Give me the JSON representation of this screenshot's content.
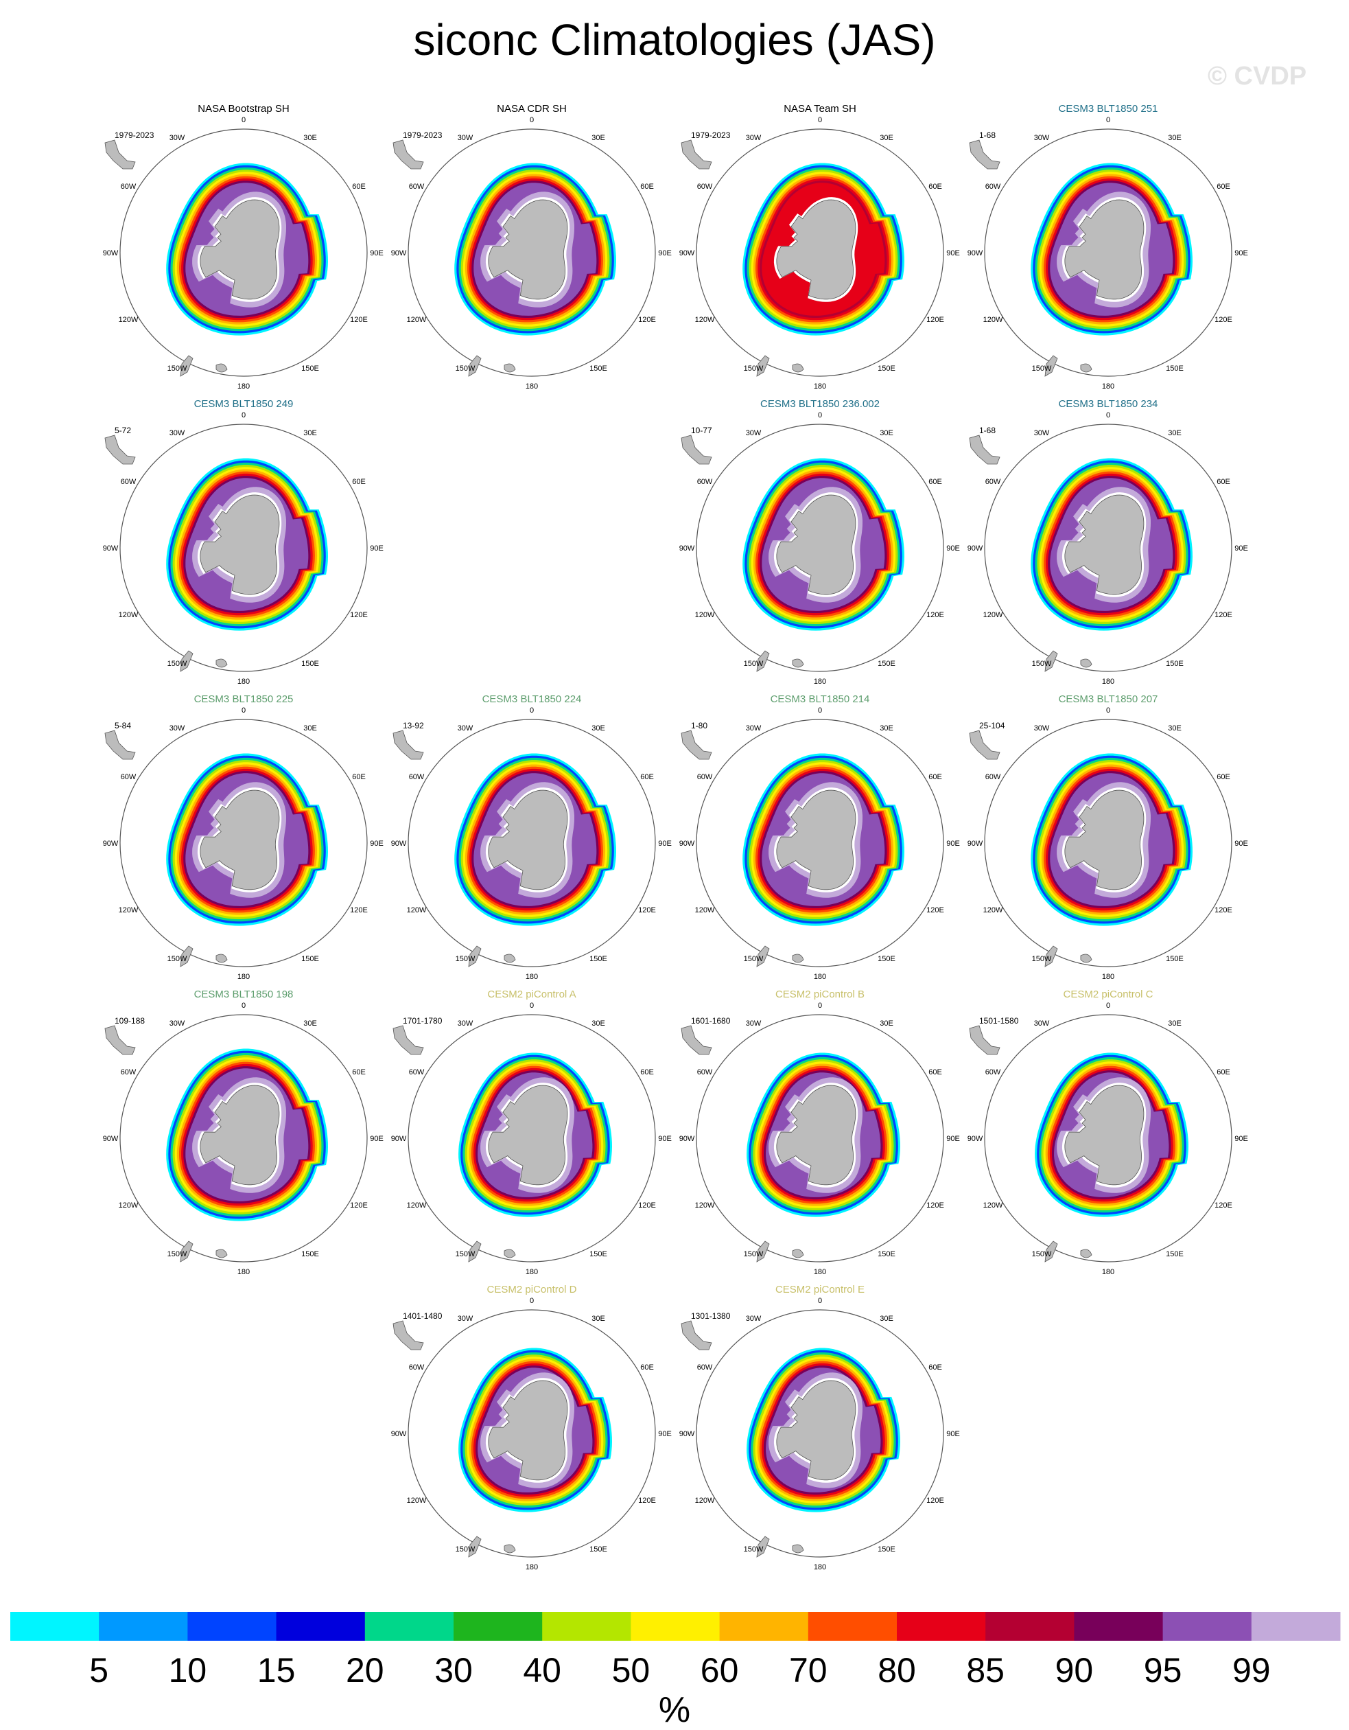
{
  "title": "siconc Climatologies (JAS)",
  "watermark": "© CVDP",
  "lon_labels": [
    "0",
    "30E",
    "60E",
    "90E",
    "120E",
    "150E",
    "180",
    "150W",
    "120W",
    "90W",
    "60W",
    "30W"
  ],
  "colors": {
    "title_obs": "#000000",
    "title_cesm3_teal": "#1f6f88",
    "title_cesm3_green": "#5e9e6e",
    "title_cesm2": "#c8c06a",
    "land": "#bcbcbc",
    "circle": "#555555"
  },
  "panels": [
    {
      "title": "NASA Bootstrap SH",
      "years": "1979-2023",
      "color": "title_obs",
      "row": 0,
      "col": 0,
      "style": "obs"
    },
    {
      "title": "NASA CDR SH",
      "years": "1979-2023",
      "color": "title_obs",
      "row": 0,
      "col": 1,
      "style": "obs"
    },
    {
      "title": "NASA Team SH",
      "years": "1979-2023",
      "color": "title_obs",
      "row": 0,
      "col": 2,
      "style": "team"
    },
    {
      "title": "CESM3 BLT1850 251",
      "years": "1-68",
      "color": "title_cesm3_teal",
      "row": 0,
      "col": 3,
      "style": "cesm3"
    },
    {
      "title": "CESM3 BLT1850 249",
      "years": "5-72",
      "color": "title_cesm3_teal",
      "row": 1,
      "col": 0,
      "style": "cesm3"
    },
    {
      "title": "CESM3 BLT1850 236.002",
      "years": "10-77",
      "color": "title_cesm3_teal",
      "row": 1,
      "col": 2,
      "style": "cesm3"
    },
    {
      "title": "CESM3 BLT1850 234",
      "years": "1-68",
      "color": "title_cesm3_teal",
      "row": 1,
      "col": 3,
      "style": "cesm3"
    },
    {
      "title": "CESM3 BLT1850 225",
      "years": "5-84",
      "color": "title_cesm3_green",
      "row": 2,
      "col": 0,
      "style": "cesm3"
    },
    {
      "title": "CESM3 BLT1850 224",
      "years": "13-92",
      "color": "title_cesm3_green",
      "row": 2,
      "col": 1,
      "style": "cesm3"
    },
    {
      "title": "CESM3 BLT1850 214",
      "years": "1-80",
      "color": "title_cesm3_green",
      "row": 2,
      "col": 2,
      "style": "cesm3"
    },
    {
      "title": "CESM3 BLT1850 207",
      "years": "25-104",
      "color": "title_cesm3_green",
      "row": 2,
      "col": 3,
      "style": "cesm3"
    },
    {
      "title": "CESM3 BLT1850 198",
      "years": "109-188",
      "color": "title_cesm3_green",
      "row": 3,
      "col": 0,
      "style": "cesm3"
    },
    {
      "title": "CESM2 piControl A",
      "years": "1701-1780",
      "color": "title_cesm2",
      "row": 3,
      "col": 1,
      "style": "cesm2"
    },
    {
      "title": "CESM2 piControl B",
      "years": "1601-1680",
      "color": "title_cesm2",
      "row": 3,
      "col": 2,
      "style": "cesm2"
    },
    {
      "title": "CESM2 piControl C",
      "years": "1501-1580",
      "color": "title_cesm2",
      "row": 3,
      "col": 3,
      "style": "cesm2"
    },
    {
      "title": "CESM2 piControl D",
      "years": "1401-1480",
      "color": "title_cesm2",
      "row": 4,
      "col": 1,
      "style": "cesm2"
    },
    {
      "title": "CESM2 piControl E",
      "years": "1301-1380",
      "color": "title_cesm2",
      "row": 4,
      "col": 2,
      "style": "cesm2"
    }
  ],
  "colorbar": {
    "unit": "%",
    "colors": [
      "#00f5ff",
      "#0099ff",
      "#0044ff",
      "#0000dd",
      "#00d78a",
      "#1eb51e",
      "#b4e600",
      "#fff000",
      "#ffb400",
      "#ff4e00",
      "#e60018",
      "#b40032",
      "#78005a",
      "#8c50b4",
      "#c3aada"
    ],
    "labels": [
      "5",
      "10",
      "15",
      "20",
      "30",
      "40",
      "50",
      "60",
      "70",
      "80",
      "85",
      "90",
      "95",
      "99"
    ]
  }
}
